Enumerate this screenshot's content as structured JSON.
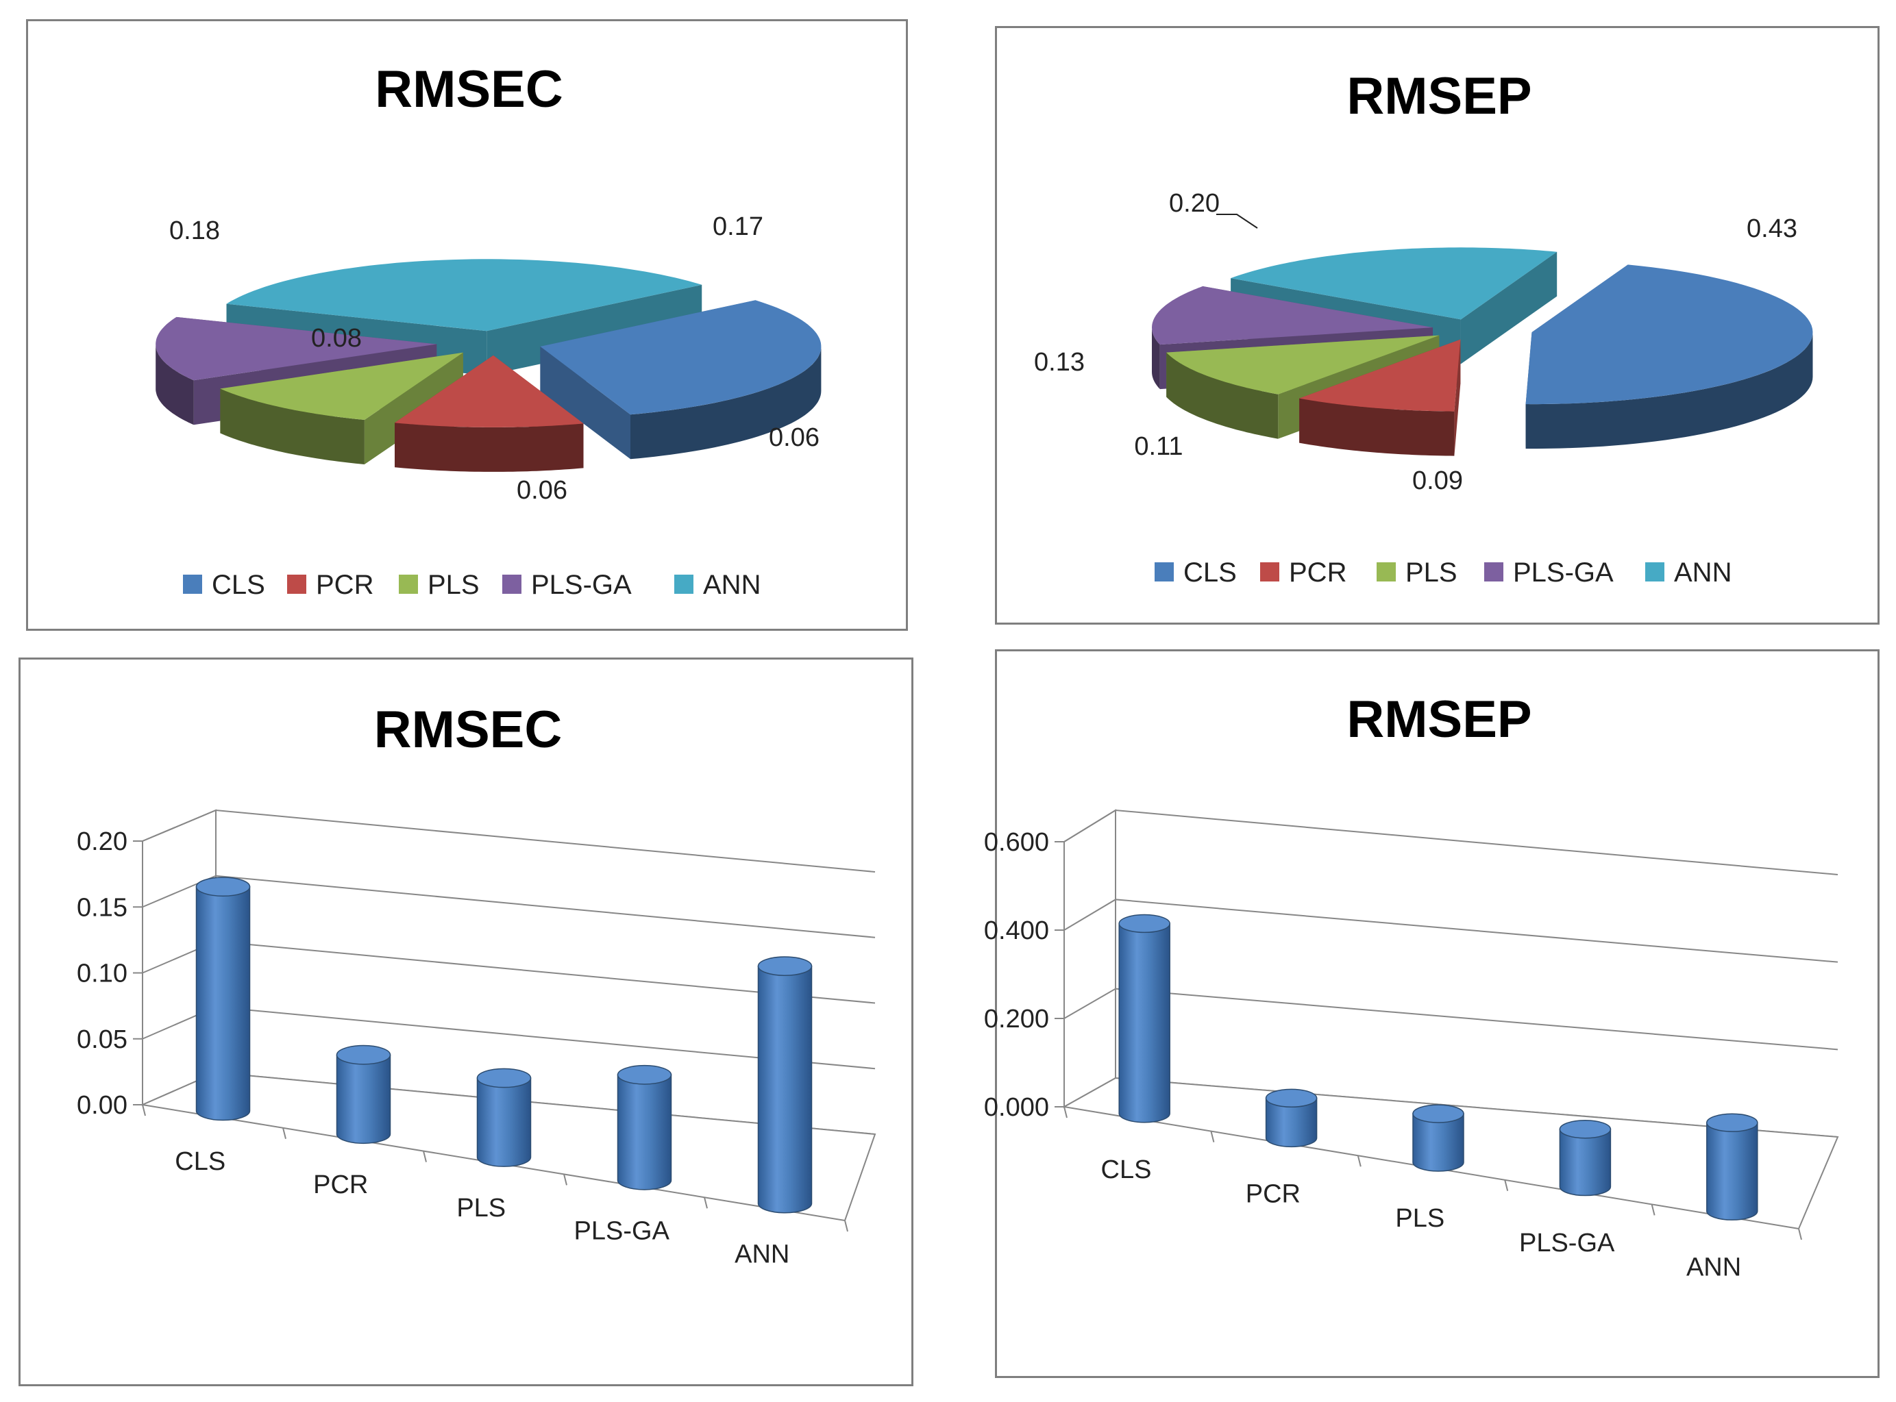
{
  "chart_data": [
    {
      "type": "pie",
      "title": "RMSEC",
      "categories": [
        "CLS",
        "PCR",
        "PLS",
        "PLS-GA",
        "ANN"
      ],
      "values": [
        0.17,
        0.06,
        0.06,
        0.08,
        0.18
      ],
      "labels": [
        "0.17",
        "0.06",
        "0.06",
        "0.08",
        "0.18"
      ],
      "legend": [
        "CLS",
        "PCR",
        "PLS",
        "PLS-GA",
        "ANN"
      ],
      "legend_position": "bottom",
      "style": "3d-exploded"
    },
    {
      "type": "pie",
      "title": "RMSEP",
      "categories": [
        "CLS",
        "PCR",
        "PLS",
        "PLS-GA",
        "ANN"
      ],
      "values": [
        0.43,
        0.09,
        0.11,
        0.13,
        0.2
      ],
      "labels": [
        "0.43",
        "0.09",
        "0.11",
        "0.13",
        "0.20"
      ],
      "legend": [
        "CLS",
        "PCR",
        "PLS",
        "PLS-GA",
        "ANN"
      ],
      "legend_position": "bottom",
      "style": "3d-exploded"
    },
    {
      "type": "bar",
      "title": "RMSEC",
      "categories": [
        "CLS",
        "PCR",
        "PLS",
        "PLS-GA",
        "ANN"
      ],
      "values": [
        0.17,
        0.06,
        0.06,
        0.08,
        0.18
      ],
      "yticks": [
        "0.00",
        "0.05",
        "0.10",
        "0.15",
        "0.20"
      ],
      "ylim": [
        0,
        0.2
      ],
      "style": "3d-cylinder",
      "grid": true
    },
    {
      "type": "bar",
      "title": "RMSEP",
      "categories": [
        "CLS",
        "PCR",
        "PLS",
        "PLS-GA",
        "ANN"
      ],
      "values": [
        0.43,
        0.09,
        0.11,
        0.13,
        0.2
      ],
      "yticks": [
        "0.000",
        "0.200",
        "0.400",
        "0.600"
      ],
      "ylim": [
        0,
        0.6
      ],
      "style": "3d-cylinder",
      "grid": true
    }
  ],
  "colors": {
    "CLS": "#4a7ebb",
    "PCR": "#be4b48",
    "PLS": "#98b954",
    "PLS-GA": "#7d60a0",
    "ANN": "#46aac5",
    "bar": "#4a7ebb",
    "border": "#7f7f7f",
    "grid": "#878787"
  }
}
